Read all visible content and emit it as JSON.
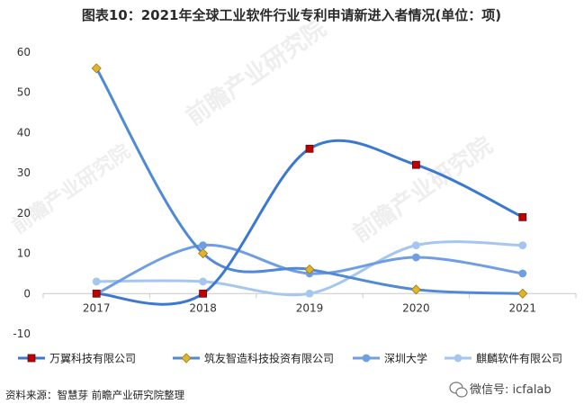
{
  "chart_data": {
    "type": "line",
    "title": "图表10：2021年全球工业软件行业专利申请新进入者情况(单位：项)",
    "categories": [
      "2017",
      "2018",
      "2019",
      "2020",
      "2021"
    ],
    "ylim": [
      -10,
      60
    ],
    "yticks": [
      -10,
      0,
      10,
      20,
      30,
      40,
      50,
      60
    ],
    "xlabel": "",
    "ylabel": "",
    "smooth": true,
    "legend_position": "bottom",
    "series": [
      {
        "name": "万翼科技有限公司",
        "values": [
          0,
          0,
          36,
          32,
          19
        ],
        "color": "#3b78d1",
        "marker": "square",
        "marker_color": "#c00000"
      },
      {
        "name": "筑友智造科技投资有限公司",
        "values": [
          56,
          10,
          6,
          1,
          0
        ],
        "color": "#4f89d8",
        "marker": "diamond",
        "marker_color": "#e0b52c"
      },
      {
        "name": "深圳大学",
        "values": [
          0,
          12,
          5,
          9,
          5
        ],
        "color": "#6f9fe2",
        "marker": "circle",
        "marker_color": "#6f9fe2"
      },
      {
        "name": "麒麟软件有限公司",
        "values": [
          3,
          3,
          0,
          12,
          12
        ],
        "color": "#a5c6ef",
        "marker": "circle",
        "marker_color": "#a5c6ef"
      }
    ]
  },
  "watermark": {
    "text": "前瞻产业研究院"
  },
  "footer": {
    "source": "资料来源：智慧芽 前瞻产业研究院整理",
    "wechat": "微信号: icfalab"
  }
}
